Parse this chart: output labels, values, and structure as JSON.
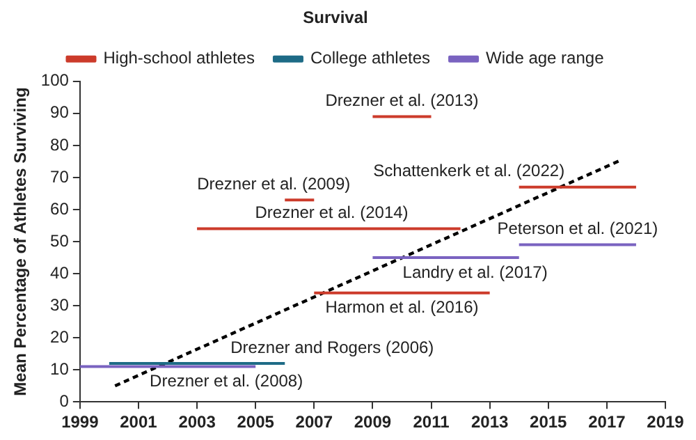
{
  "chart_data": {
    "type": "line",
    "title": "Survival",
    "ylabel": "Mean Percentage of Athletes Surviving",
    "xlim": [
      1999,
      2019
    ],
    "xticks": [
      1999,
      2001,
      2003,
      2005,
      2007,
      2009,
      2011,
      2013,
      2015,
      2017,
      2019
    ],
    "ylim": [
      0,
      100
    ],
    "yticks": [
      0,
      10,
      20,
      30,
      40,
      50,
      60,
      70,
      80,
      90,
      100
    ],
    "grid": false,
    "legend": "top",
    "marker": "none",
    "line_style": "solid",
    "series": [
      {
        "name": "High-school athletes",
        "color": "#cc3b2b",
        "x": [
          2009,
          2011
        ],
        "values": [
          89,
          89
        ]
      },
      {
        "name": "College athletes",
        "color": "#1e6b86",
        "x": [
          2000,
          2006
        ],
        "values": [
          12,
          12
        ]
      },
      {
        "name": "Wide age range",
        "color": "#7a63c0",
        "x": [
          2014,
          2018
        ],
        "values": [
          49,
          49
        ]
      },
      {
        "color": "#cc3b2b",
        "x": [
          2006,
          2007
        ],
        "values": [
          63,
          63
        ]
      },
      {
        "color": "#cc3b2b",
        "x": [
          2014,
          2018
        ],
        "values": [
          67,
          67
        ]
      },
      {
        "color": "#cc3b2b",
        "x": [
          2003,
          2012
        ],
        "values": [
          54,
          54
        ]
      },
      {
        "color": "#cc3b2b",
        "x": [
          2007,
          2013
        ],
        "values": [
          34,
          34
        ]
      },
      {
        "color": "#7a63c0",
        "x": [
          2009,
          2014
        ],
        "values": [
          45,
          45
        ]
      },
      {
        "color": "#7a63c0",
        "x": [
          1999,
          2005
        ],
        "values": [
          11,
          11
        ]
      },
      {
        "color": "#000000",
        "line_style": "dashed",
        "x": [
          2000.2,
          2017.5
        ],
        "values": [
          5,
          75.5
        ]
      }
    ],
    "annotations": [
      {
        "text": "Drezner et al. (2013)",
        "x": 2010,
        "y": 89
      },
      {
        "text": "Drezner et al. (2009)",
        "x": 2006,
        "y": 63
      },
      {
        "text": "Schattenkerk et al. (2022)",
        "x": 2014,
        "y": 67
      },
      {
        "text": "Drezner et al. (2014)",
        "x": 2007.6,
        "y": 54
      },
      {
        "text": "Peterson et al. (2021)",
        "x": 2016,
        "y": 49
      },
      {
        "text": "Landry et al. (2017)",
        "x": 2012.5,
        "y": 45
      },
      {
        "text": "Harmon et al. (2016)",
        "x": 2010,
        "y": 34
      },
      {
        "text": "Drezner and Rogers (2006)",
        "x": 2006,
        "y": 12
      },
      {
        "text": "Drezner et al. (2008)",
        "x": 2004,
        "y": 11
      }
    ]
  }
}
